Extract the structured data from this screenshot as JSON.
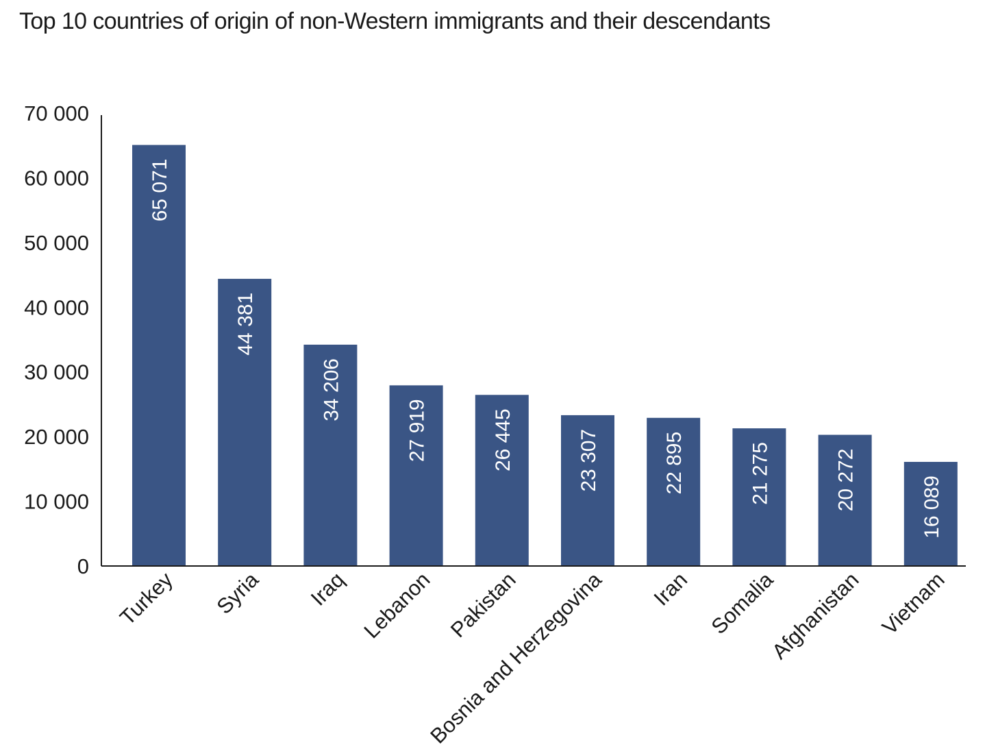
{
  "chart_data": {
    "type": "bar",
    "title": "Top 10 countries of origin of non-Western immigrants and their descendants",
    "categories": [
      "Turkey",
      "Syria",
      "Iraq",
      "Lebanon",
      "Pakistan",
      "Bosnia and Herzegovina",
      "Iran",
      "Somalia",
      "Afghanistan",
      "Vietnam"
    ],
    "values": [
      65071,
      44381,
      34206,
      27919,
      26445,
      23307,
      22895,
      21275,
      20272,
      16089
    ],
    "value_labels": [
      "65 071",
      "44 381",
      "34 206",
      "27 919",
      "26 445",
      "23 307",
      "22 895",
      "21 275",
      "20 272",
      "16 089"
    ],
    "xlabel": "",
    "ylabel": "",
    "ylim": [
      0,
      70000
    ],
    "yticks": [
      0,
      10000,
      20000,
      30000,
      40000,
      50000,
      60000,
      70000
    ],
    "ytick_labels": [
      "0",
      "10 000",
      "20 000",
      "30 000",
      "40 000",
      "50 000",
      "60 000",
      "70 000"
    ],
    "grid": false,
    "colors": {
      "bar": "#3a5585",
      "axis": "#1a1a1a",
      "value_label": "#ffffff"
    }
  }
}
